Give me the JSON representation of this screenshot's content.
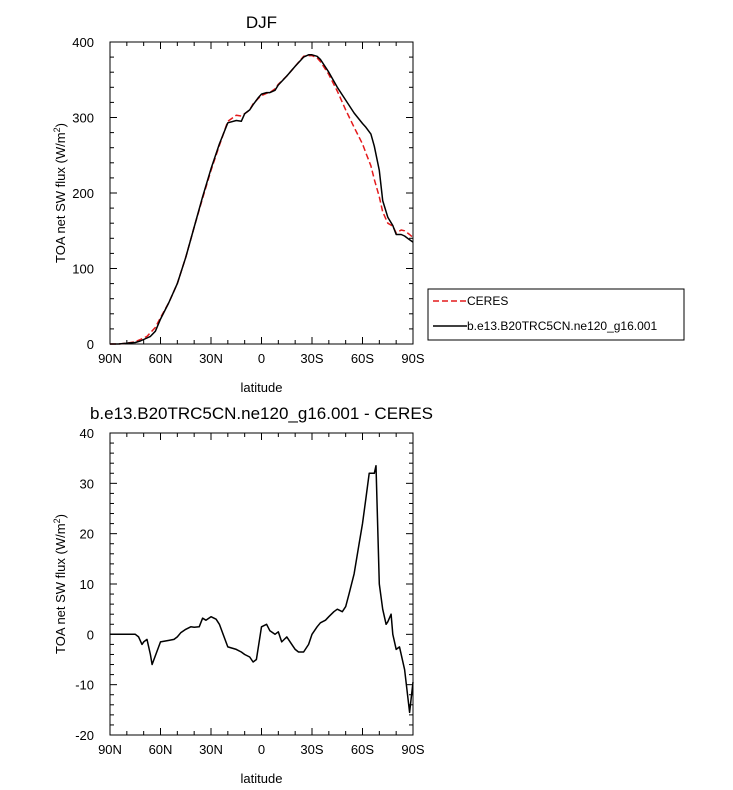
{
  "chart_data": [
    {
      "type": "line",
      "title": "DJF",
      "xlabel": "latitude",
      "ylabel": "TOA net SW flux (W/m",
      "ylabel_sup": "2",
      "ylabel_end": ")",
      "xlim": [
        90,
        -90
      ],
      "ylim": [
        0,
        400
      ],
      "x_ticks": [
        90,
        60,
        30,
        0,
        -30,
        -60,
        -90
      ],
      "x_tick_labels": [
        "90N",
        "60N",
        "30N",
        "0",
        "30S",
        "60S",
        "90S"
      ],
      "y_ticks": [
        0,
        100,
        200,
        300,
        400
      ],
      "y_tick_labels": [
        "0",
        "100",
        "200",
        "300",
        "400"
      ],
      "legend_position": "right of plot",
      "series": [
        {
          "name": "CERES",
          "color": "#e41a1c",
          "dash": "dashed",
          "x": [
            90,
            85,
            80,
            75,
            72,
            68,
            66,
            63,
            60,
            55,
            50,
            45,
            40,
            35,
            30,
            25,
            20,
            15,
            12,
            10,
            7,
            5,
            2,
            0,
            -3,
            -5,
            -8,
            -10,
            -15,
            -20,
            -25,
            -28,
            -30,
            -33,
            -35,
            -40,
            -45,
            -50,
            -55,
            -60,
            -62,
            -65,
            -67,
            -70,
            -72,
            -75,
            -78,
            -80,
            -83,
            -85,
            -88,
            -90
          ],
          "y": [
            0,
            0,
            1,
            3,
            6,
            10,
            15,
            22,
            35,
            55,
            80,
            115,
            155,
            193,
            230,
            263,
            295,
            303,
            302,
            305,
            310,
            318,
            325,
            329,
            332,
            333,
            338,
            344,
            355,
            368,
            381,
            382,
            382,
            379,
            374,
            357,
            335,
            310,
            287,
            265,
            253,
            236,
            218,
            195,
            175,
            160,
            156,
            147,
            151,
            150,
            145,
            141
          ]
        },
        {
          "name": "b.e13.B20TRC5CN.ne120_g16.001",
          "color": "#000000",
          "dash": "solid",
          "x": [
            90,
            85,
            80,
            75,
            72,
            68,
            66,
            63,
            60,
            55,
            50,
            45,
            40,
            35,
            30,
            25,
            20,
            15,
            12,
            10,
            7,
            5,
            2,
            0,
            -3,
            -5,
            -8,
            -10,
            -15,
            -20,
            -25,
            -28,
            -30,
            -33,
            -35,
            -40,
            -45,
            -50,
            -55,
            -60,
            -62,
            -65,
            -67,
            -70,
            -72,
            -75,
            -78,
            -80,
            -83,
            -85,
            -88,
            -90
          ],
          "y": [
            0,
            0,
            1,
            2,
            4,
            8,
            10,
            17,
            33,
            55,
            80,
            115,
            155,
            195,
            232,
            265,
            293,
            296,
            295,
            305,
            310,
            317,
            326,
            331,
            333,
            333,
            336,
            343,
            355,
            368,
            380,
            383,
            383,
            381,
            377,
            360,
            340,
            323,
            306,
            292,
            287,
            278,
            262,
            230,
            190,
            168,
            157,
            145,
            145,
            143,
            138,
            135
          ]
        }
      ]
    },
    {
      "type": "line",
      "title": "b.e13.B20TRC5CN.ne120_g16.001 - CERES",
      "xlabel": "latitude",
      "ylabel": "TOA net SW flux (W/m",
      "ylabel_sup": "2",
      "ylabel_end": ")",
      "xlim": [
        90,
        -90
      ],
      "ylim": [
        -20,
        40
      ],
      "x_ticks": [
        90,
        60,
        30,
        0,
        -30,
        -60,
        -90
      ],
      "x_tick_labels": [
        "90N",
        "60N",
        "30N",
        "0",
        "30S",
        "60S",
        "90S"
      ],
      "y_ticks": [
        -20,
        -10,
        0,
        10,
        20,
        30,
        40
      ],
      "y_tick_labels": [
        "-20",
        "-10",
        "0",
        "10",
        "20",
        "30",
        "40"
      ],
      "series": [
        {
          "color": "#000000",
          "dash": "solid",
          "x": [
            90,
            80,
            75,
            73,
            71,
            70,
            68,
            66,
            65,
            60,
            55,
            52,
            50,
            48,
            45,
            42,
            40,
            37,
            35,
            33,
            30,
            27,
            25,
            20,
            15,
            12,
            10,
            7,
            5,
            3,
            0,
            -3,
            -5,
            -8,
            -10,
            -12,
            -15,
            -18,
            -20,
            -22,
            -25,
            -28,
            -30,
            -33,
            -35,
            -38,
            -40,
            -43,
            -45,
            -48,
            -50,
            -52,
            -55,
            -58,
            -60,
            -62,
            -64,
            -65,
            -67,
            -68,
            -70,
            -72,
            -74,
            -75,
            -77,
            -78,
            -80,
            -82,
            -85,
            -88,
            -90
          ],
          "y": [
            0,
            0,
            0,
            -0.5,
            -2,
            -1.5,
            -1,
            -4,
            -6,
            -1.5,
            -1.2,
            -1,
            -0.5,
            0.3,
            1,
            1.5,
            1.4,
            1.5,
            3.2,
            2.8,
            3.5,
            3,
            2,
            -2.5,
            -3,
            -3.5,
            -4,
            -4.5,
            -5.5,
            -5,
            1.5,
            2,
            0.7,
            0,
            0.5,
            -1.5,
            -0.5,
            -2,
            -3,
            -3.5,
            -3.5,
            -2,
            0,
            1.5,
            2.3,
            2.8,
            3.5,
            4.5,
            5,
            4.5,
            5.5,
            8,
            12,
            18,
            22,
            27,
            32,
            32,
            32,
            33.5,
            10,
            5,
            2,
            2.5,
            4,
            0,
            -3,
            -2.5,
            -7,
            -15.5,
            -9.5
          ]
        }
      ]
    }
  ]
}
